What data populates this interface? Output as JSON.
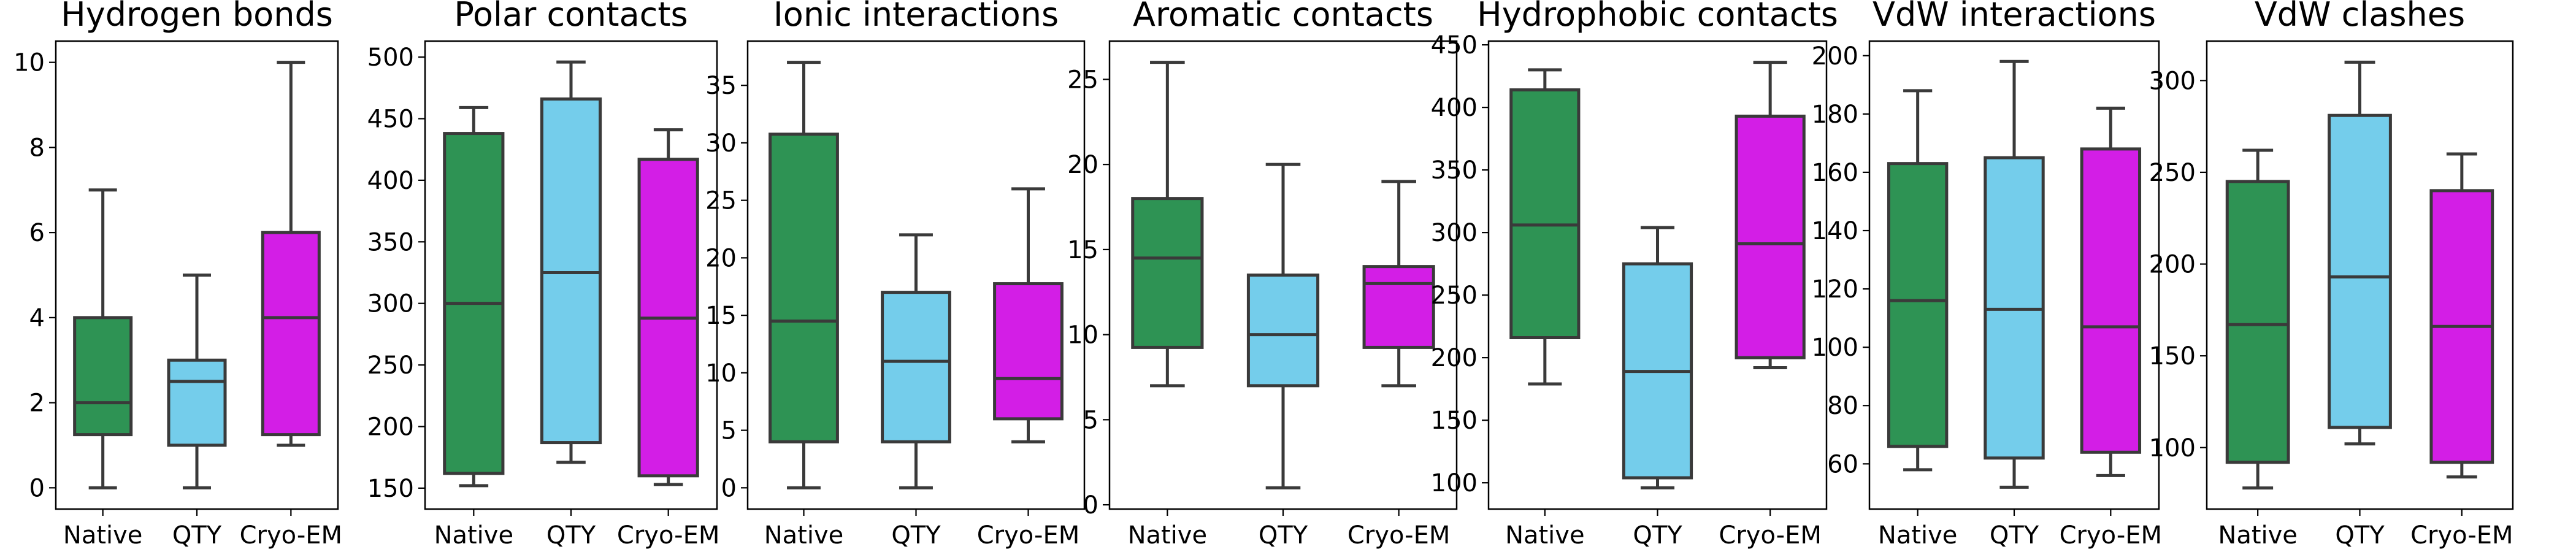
{
  "box_colors": {
    "Native": "#2e9354",
    "QTY": "#74cdeb",
    "Cryo-EM": "#d31ee6"
  },
  "line_color": "#3a3a3a",
  "chart_data": [
    {
      "type": "box",
      "title": "Hydrogen bonds",
      "categories": [
        "Native",
        "QTY",
        "Cryo-EM"
      ],
      "ylim": [
        -0.5,
        10.5
      ],
      "yticks": [
        0,
        2,
        4,
        6,
        8,
        10
      ],
      "boxes": [
        {
          "whislo": 0,
          "q1": 1.25,
          "med": 2,
          "q3": 4,
          "whishi": 7
        },
        {
          "whislo": 0,
          "q1": 1,
          "med": 2.5,
          "q3": 3,
          "whishi": 5
        },
        {
          "whislo": 1,
          "q1": 1.25,
          "med": 4,
          "q3": 6,
          "whishi": 10
        }
      ]
    },
    {
      "type": "box",
      "title": "Polar contacts",
      "categories": [
        "Native",
        "QTY",
        "Cryo-EM"
      ],
      "ylim": [
        133,
        513
      ],
      "yticks": [
        150,
        200,
        250,
        300,
        350,
        400,
        450,
        500
      ],
      "boxes": [
        {
          "whislo": 152,
          "q1": 162,
          "med": 300,
          "q3": 438,
          "whishi": 459
        },
        {
          "whislo": 171,
          "q1": 187,
          "med": 325,
          "q3": 466,
          "whishi": 496
        },
        {
          "whislo": 153,
          "q1": 160,
          "med": 288,
          "q3": 417,
          "whishi": 441
        }
      ]
    },
    {
      "type": "box",
      "title": "Ionic interactions",
      "categories": [
        "Native",
        "QTY",
        "Cryo-EM"
      ],
      "ylim": [
        -1.85,
        38.85
      ],
      "yticks": [
        0,
        5,
        10,
        15,
        20,
        25,
        30,
        35
      ],
      "boxes": [
        {
          "whislo": 0,
          "q1": 4,
          "med": 14.5,
          "q3": 30.75,
          "whishi": 37
        },
        {
          "whislo": 0,
          "q1": 4,
          "med": 11,
          "q3": 17,
          "whishi": 22
        },
        {
          "whislo": 4,
          "q1": 6,
          "med": 9.5,
          "q3": 17.75,
          "whishi": 26
        }
      ]
    },
    {
      "type": "box",
      "title": "Aromatic contacts",
      "categories": [
        "Native",
        "QTY",
        "Cryo-EM"
      ],
      "ylim": [
        -0.25,
        27.25
      ],
      "yticks": [
        0,
        5,
        10,
        15,
        20,
        25
      ],
      "boxes": [
        {
          "whislo": 7,
          "q1": 9.25,
          "med": 14.5,
          "q3": 18,
          "whishi": 26
        },
        {
          "whislo": 1,
          "q1": 7,
          "med": 10,
          "q3": 13.5,
          "whishi": 20
        },
        {
          "whislo": 7,
          "q1": 9.25,
          "med": 13,
          "q3": 14,
          "whishi": 19
        }
      ]
    },
    {
      "type": "box",
      "title": "Hydrophobic contacts",
      "categories": [
        "Native",
        "QTY",
        "Cryo-EM"
      ],
      "ylim": [
        79,
        453
      ],
      "yticks": [
        100,
        150,
        200,
        250,
        300,
        350,
        400,
        450
      ],
      "boxes": [
        {
          "whislo": 179,
          "q1": 216,
          "med": 306,
          "q3": 414,
          "whishi": 430
        },
        {
          "whislo": 96,
          "q1": 104,
          "med": 189,
          "q3": 275,
          "whishi": 304
        },
        {
          "whislo": 192,
          "q1": 200,
          "med": 291,
          "q3": 393,
          "whishi": 436
        }
      ]
    },
    {
      "type": "box",
      "title": "VdW interactions",
      "categories": [
        "Native",
        "QTY",
        "Cryo-EM"
      ],
      "ylim": [
        44.5,
        205
      ],
      "yticks": [
        60,
        80,
        100,
        120,
        140,
        160,
        180,
        200
      ],
      "boxes": [
        {
          "whislo": 58,
          "q1": 66,
          "med": 116,
          "q3": 163,
          "whishi": 188
        },
        {
          "whislo": 52,
          "q1": 62,
          "med": 113,
          "q3": 165,
          "whishi": 198
        },
        {
          "whislo": 56,
          "q1": 64,
          "med": 107,
          "q3": 168,
          "whishi": 182
        }
      ]
    },
    {
      "type": "box",
      "title": "VdW clashes",
      "categories": [
        "Native",
        "QTY",
        "Cryo-EM"
      ],
      "ylim": [
        66.5,
        321.5
      ],
      "yticks": [
        100,
        150,
        200,
        250,
        300
      ],
      "boxes": [
        {
          "whislo": 78,
          "q1": 92,
          "med": 167,
          "q3": 245,
          "whishi": 262
        },
        {
          "whislo": 102,
          "q1": 111,
          "med": 193,
          "q3": 281,
          "whishi": 310
        },
        {
          "whislo": 84,
          "q1": 92,
          "med": 166,
          "q3": 240,
          "whishi": 260
        }
      ]
    }
  ]
}
